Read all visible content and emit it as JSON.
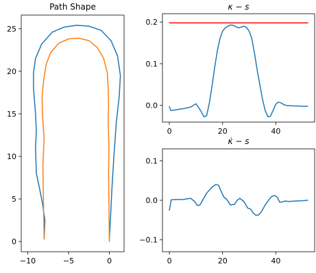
{
  "chart_data": [
    {
      "type": "line",
      "title": "Path Shape",
      "xlim": [
        -10.8,
        1.8
      ],
      "ylim": [
        -1.2,
        26.6
      ],
      "xticks": [
        -10,
        -5,
        0
      ],
      "xtick_labels": [
        "−10",
        "−5",
        "0"
      ],
      "yticks": [
        0,
        5,
        10,
        15,
        20,
        25
      ],
      "ytick_labels": [
        "0",
        "5",
        "10",
        "15",
        "20",
        "25"
      ],
      "series": [
        {
          "color": "#1f77b4",
          "x": [
            -8,
            -7.9,
            -8.2,
            -8.55,
            -8.95,
            -9.05,
            -8.95,
            -9.05,
            -9.3,
            -9.3,
            -9.05,
            -8.3,
            -7.0,
            -5.5,
            -4.0,
            -2.5,
            -1.0,
            0.2,
            1.0,
            1.35,
            1.2,
            0.85,
            0.55,
            0.3,
            0.15,
            0.0
          ],
          "y": [
            0.3,
            2.5,
            4.5,
            6.2,
            8.0,
            11.0,
            13.0,
            15.0,
            18.0,
            19.8,
            21.5,
            23.2,
            24.6,
            25.2,
            25.4,
            25.3,
            24.8,
            23.6,
            21.8,
            19.5,
            17.0,
            14.0,
            10.0,
            6.0,
            3.0,
            0.3
          ]
        },
        {
          "color": "#ff7f0e",
          "x": [
            -8,
            -8.05,
            -8.1,
            -8.15,
            -8.0,
            -8.2,
            -8.25,
            -8.05,
            -7.75,
            -7.2,
            -6.2,
            -5.0,
            -3.8,
            -2.5,
            -1.5,
            -0.7,
            -0.25,
            -0.15,
            -0.1,
            -0.15,
            -0.05,
            -0.1,
            -0.05,
            0.0
          ],
          "y": [
            0.3,
            3.0,
            6.0,
            9.0,
            12.0,
            15.0,
            17.0,
            19.0,
            20.8,
            22.2,
            23.3,
            23.8,
            23.9,
            23.6,
            22.8,
            21.5,
            19.8,
            18.0,
            16.0,
            14.0,
            11.0,
            8.0,
            4.0,
            0.0
          ]
        }
      ]
    },
    {
      "type": "line",
      "title": "κ − s",
      "xlim": [
        -2.6,
        54.6
      ],
      "ylim": [
        -0.04,
        0.22
      ],
      "xticks": [
        0,
        20,
        40
      ],
      "xtick_labels": [
        "0",
        "20",
        "40"
      ],
      "yticks": [
        0.0,
        0.1,
        0.2
      ],
      "ytick_labels": [
        "0.0",
        "0.1",
        "0.2"
      ],
      "series": [
        {
          "color": "#1f77b4",
          "x": [
            0,
            0.5,
            2,
            5,
            8,
            10,
            11.5,
            13,
            14,
            15,
            16,
            17,
            18,
            19,
            20,
            21,
            22,
            23,
            24,
            25,
            26,
            27,
            28,
            29,
            30,
            31,
            32,
            33,
            34,
            35,
            36,
            37,
            38,
            39,
            40,
            41,
            42,
            43,
            44,
            46,
            50,
            52
          ],
          "y": [
            -0.003,
            -0.012,
            -0.011,
            -0.008,
            -0.004,
            0.004,
            -0.01,
            -0.027,
            -0.025,
            0.005,
            0.045,
            0.09,
            0.13,
            0.16,
            0.178,
            0.186,
            0.19,
            0.193,
            0.192,
            0.189,
            0.186,
            0.188,
            0.19,
            0.187,
            0.178,
            0.16,
            0.125,
            0.085,
            0.05,
            0.015,
            -0.012,
            -0.027,
            -0.026,
            -0.012,
            0.003,
            0.008,
            0.006,
            0.002,
            0.0,
            -0.001,
            -0.002,
            -0.002
          ]
        },
        {
          "color": "#ff0000",
          "x": [
            0,
            52
          ],
          "y": [
            0.198,
            0.198
          ]
        }
      ]
    },
    {
      "type": "line",
      "title": "κ̇ − s",
      "xlim": [
        -2.6,
        54.6
      ],
      "ylim": [
        -0.13,
        0.13
      ],
      "xticks": [
        0,
        20,
        40
      ],
      "xtick_labels": [
        "0",
        "20",
        "40"
      ],
      "yticks": [
        -0.1,
        0.0,
        0.1
      ],
      "ytick_labels": [
        "−0.1",
        "0.0",
        "0.1"
      ],
      "series": [
        {
          "color": "#1f77b4",
          "x": [
            0,
            0.7,
            2,
            5,
            8,
            9.5,
            10.5,
            11.5,
            12.5,
            14,
            16,
            17.5,
            18.5,
            19.5,
            20.5,
            21.5,
            23,
            24.5,
            25.5,
            26.5,
            28,
            29.5,
            30.5,
            31.5,
            32.5,
            33.5,
            34.5,
            36,
            37.5,
            38.5,
            39.5,
            40.5,
            41.5,
            42.5,
            43.5,
            45,
            47,
            50,
            52
          ],
          "y": [
            -0.025,
            0.001,
            0.002,
            0.002,
            0.005,
            -0.003,
            -0.013,
            -0.012,
            0.0,
            0.018,
            0.033,
            0.04,
            0.038,
            0.022,
            0.008,
            0.003,
            -0.012,
            -0.01,
            0.0,
            0.005,
            -0.003,
            -0.02,
            -0.022,
            -0.032,
            -0.038,
            -0.037,
            -0.03,
            -0.012,
            0.002,
            0.01,
            0.012,
            0.008,
            -0.005,
            -0.004,
            -0.002,
            -0.003,
            -0.002,
            -0.001,
            0.0
          ]
        }
      ]
    }
  ]
}
